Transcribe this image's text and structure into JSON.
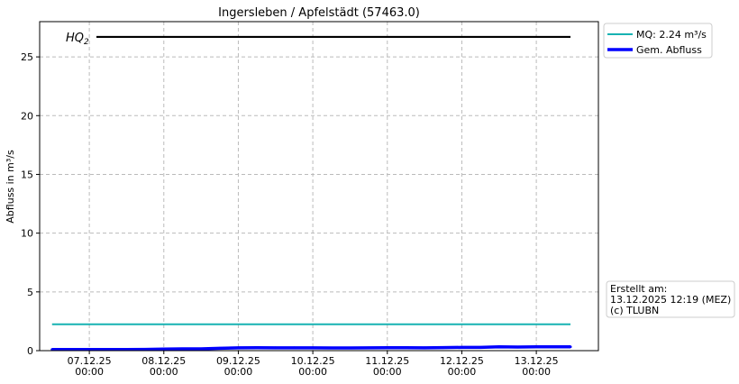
{
  "chart_data": {
    "type": "line",
    "title": "Ingersleben / Apfelstädt (57463.0)",
    "ylabel": "Abfluss in m³/s",
    "xlabel": "",
    "ylim": [
      0,
      28
    ],
    "xlim": [
      "2025-12-06 08:00",
      "2025-12-13 20:00"
    ],
    "yticks": [
      0,
      5,
      10,
      15,
      20,
      25
    ],
    "xticks": [
      {
        "date": "2025-12-07 00:00",
        "label1": "07.12.25",
        "label2": "00:00"
      },
      {
        "date": "2025-12-08 00:00",
        "label1": "08.12.25",
        "label2": "00:00"
      },
      {
        "date": "2025-12-09 00:00",
        "label1": "09.12.25",
        "label2": "00:00"
      },
      {
        "date": "2025-12-10 00:00",
        "label1": "10.12.25",
        "label2": "00:00"
      },
      {
        "date": "2025-12-11 00:00",
        "label1": "11.12.25",
        "label2": "00:00"
      },
      {
        "date": "2025-12-12 00:00",
        "label1": "12.12.25",
        "label2": "00:00"
      },
      {
        "date": "2025-12-13 00:00",
        "label1": "13.12.25",
        "label2": "00:00"
      }
    ],
    "grid": true,
    "legend_placement": "outside-top-right",
    "reference_lines": [
      {
        "name": "HQ2",
        "label": "HQ",
        "label_sub": "2",
        "value": 26.7,
        "color": "#000000"
      },
      {
        "name": "MQ: 2.24 m³/s",
        "value": 2.24,
        "color": "#17b2b2"
      }
    ],
    "series": [
      {
        "name": "Gem. Abfluss",
        "color": "#0000ff",
        "x": [
          "2025-12-06 12:00",
          "2025-12-06 18:00",
          "2025-12-07 00:00",
          "2025-12-07 06:00",
          "2025-12-07 12:00",
          "2025-12-07 18:00",
          "2025-12-08 00:00",
          "2025-12-08 06:00",
          "2025-12-08 12:00",
          "2025-12-08 18:00",
          "2025-12-09 00:00",
          "2025-12-09 06:00",
          "2025-12-09 12:00",
          "2025-12-09 18:00",
          "2025-12-10 00:00",
          "2025-12-10 06:00",
          "2025-12-10 12:00",
          "2025-12-10 18:00",
          "2025-12-11 00:00",
          "2025-12-11 06:00",
          "2025-12-11 12:00",
          "2025-12-11 18:00",
          "2025-12-12 00:00",
          "2025-12-12 06:00",
          "2025-12-12 12:00",
          "2025-12-12 18:00",
          "2025-12-13 00:00",
          "2025-12-13 06:00",
          "2025-12-13 11:00"
        ],
        "y": [
          0.1,
          0.1,
          0.1,
          0.1,
          0.1,
          0.11,
          0.14,
          0.15,
          0.15,
          0.2,
          0.24,
          0.25,
          0.24,
          0.24,
          0.24,
          0.23,
          0.23,
          0.24,
          0.25,
          0.25,
          0.24,
          0.26,
          0.28,
          0.28,
          0.32,
          0.31,
          0.33,
          0.33,
          0.33
        ]
      }
    ]
  },
  "legend": {
    "items": [
      "MQ: 2.24 m³/s",
      "Gem. Abfluss"
    ]
  },
  "info_box": {
    "line1": "Erstellt am:",
    "line2": "13.12.2025 12:19 (MEZ)",
    "line3": "(c) TLUBN"
  }
}
